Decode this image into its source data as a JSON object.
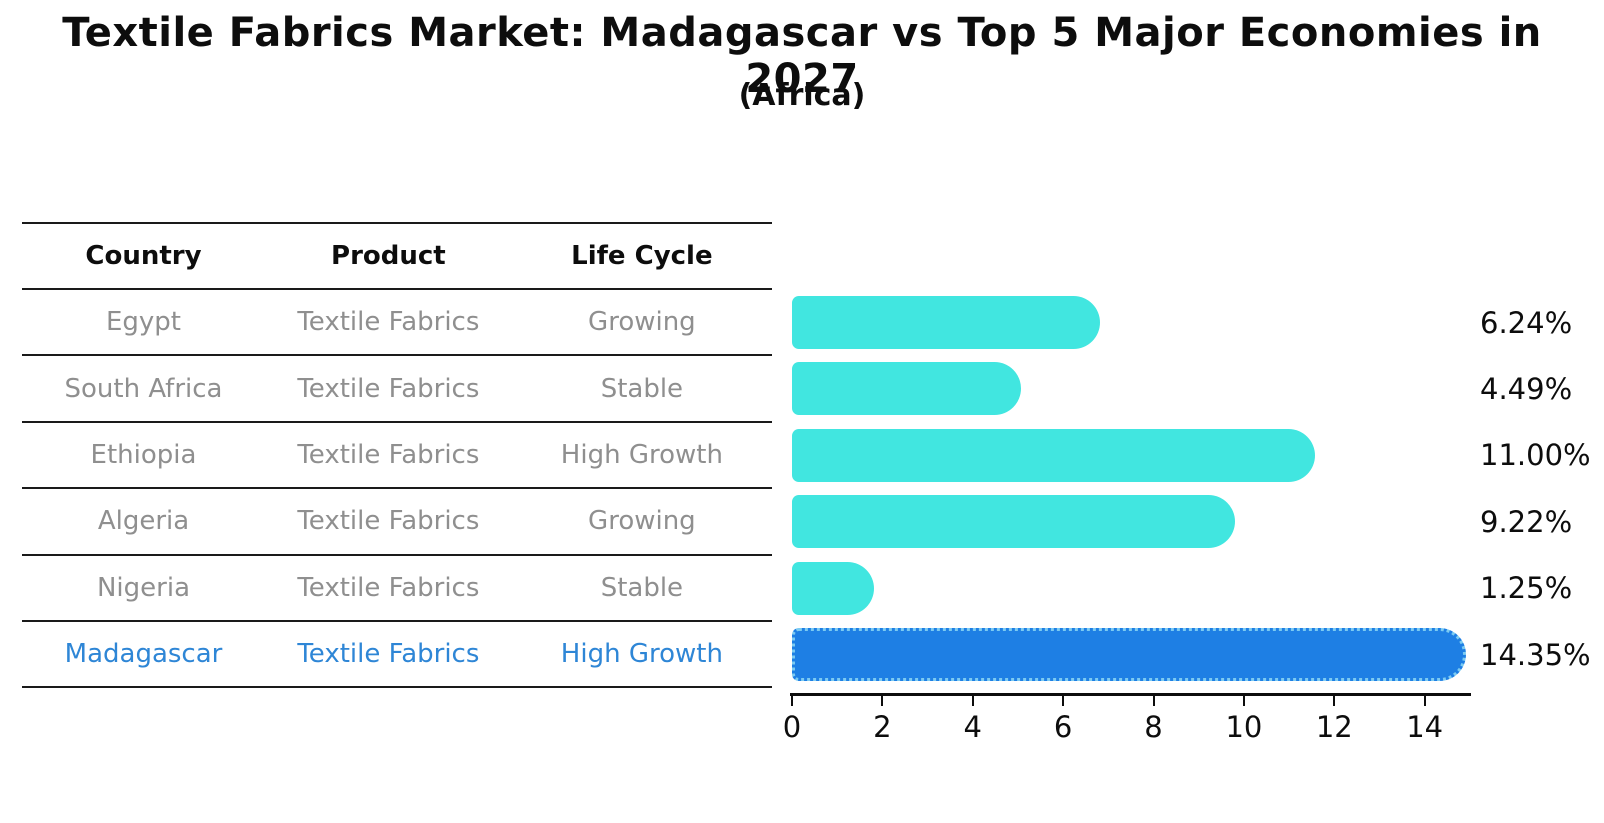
{
  "title": "Textile Fabrics Market: Madagascar vs Top 5 Major Economies in 2027",
  "subtitle": "(Africa)",
  "table": {
    "headers": [
      "Country",
      "Product",
      "Life Cycle"
    ],
    "rows": [
      {
        "country": "Egypt",
        "product": "Textile Fabrics",
        "life_cycle": "Growing",
        "highlight": false
      },
      {
        "country": "South Africa",
        "product": "Textile Fabrics",
        "life_cycle": "Stable",
        "highlight": false
      },
      {
        "country": "Ethiopia",
        "product": "Textile Fabrics",
        "life_cycle": "High Growth",
        "highlight": false
      },
      {
        "country": "Algeria",
        "product": "Textile Fabrics",
        "life_cycle": "Growing",
        "highlight": false
      },
      {
        "country": "Nigeria",
        "product": "Textile Fabrics",
        "life_cycle": "Stable",
        "highlight": false
      },
      {
        "country": "Madagascar",
        "product": "Textile Fabrics",
        "life_cycle": "High Growth",
        "highlight": true
      }
    ]
  },
  "chart_data": {
    "type": "bar",
    "orientation": "horizontal",
    "title": "Textile Fabrics Market: Madagascar vs Top 5 Major Economies in 2027",
    "subtitle": "(Africa)",
    "categories": [
      "Egypt",
      "South Africa",
      "Ethiopia",
      "Algeria",
      "Nigeria",
      "Madagascar"
    ],
    "values": [
      6.24,
      4.49,
      11.0,
      9.22,
      1.25,
      14.35
    ],
    "value_labels": [
      "6.24%",
      "4.49%",
      "11.00%",
      "9.22%",
      "1.25%",
      "14.35%"
    ],
    "highlight_index": 5,
    "x_ticks": [
      0,
      2,
      4,
      6,
      8,
      10,
      12,
      14
    ],
    "xlim": [
      0,
      15.07
    ],
    "xlabel": "",
    "ylabel": "",
    "grid": false,
    "legend": false
  },
  "colors": {
    "bar_default": "#41e6e0",
    "bar_highlight": "#1e7fe4",
    "bar_highlight_edge": "#7ccbf2",
    "table_text": "#8f8f8f",
    "table_text_highlight": "#2e86d6",
    "text": "#0d0d0d"
  }
}
